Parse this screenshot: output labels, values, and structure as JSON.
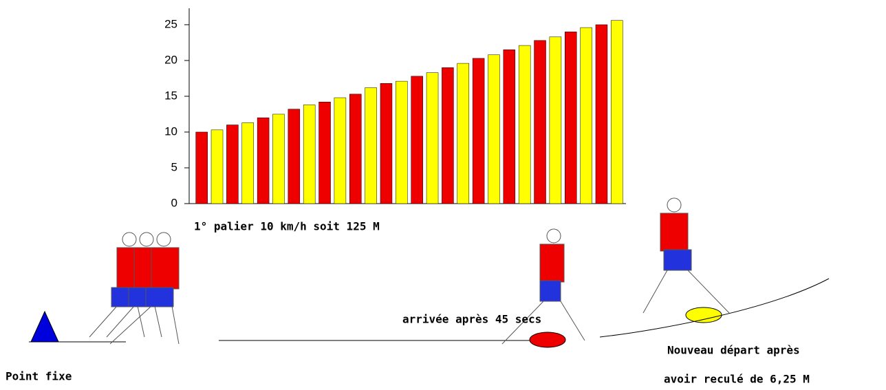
{
  "chart_data": {
    "type": "bar",
    "categories": [
      null,
      null,
      null,
      null,
      null,
      null,
      null,
      null,
      null,
      null,
      null,
      null,
      null,
      null,
      null,
      null,
      null,
      null,
      null,
      null,
      null,
      null,
      null,
      null,
      null,
      null,
      null,
      null
    ],
    "values": [
      10,
      10.3,
      11,
      11.3,
      12,
      12.5,
      13.2,
      13.8,
      14.2,
      14.8,
      15.3,
      16.2,
      16.8,
      17.1,
      17.8,
      18.3,
      19,
      19.6,
      20.3,
      20.8,
      21.5,
      22.1,
      22.8,
      23.3,
      24,
      24.6,
      25,
      25.6
    ],
    "colors": [
      "#ee0000",
      "#ffff00"
    ],
    "ylim": [
      0,
      27.3
    ],
    "yticks": [
      0,
      5,
      10,
      15,
      20,
      25
    ],
    "grid": false,
    "annotations": [
      "1° palier 10 km/h soit 125 M",
      "arrivée après 45 secs",
      "Nouveau départ après",
      "avoir reculé de 6,25 M",
      "Point fixe"
    ]
  }
}
